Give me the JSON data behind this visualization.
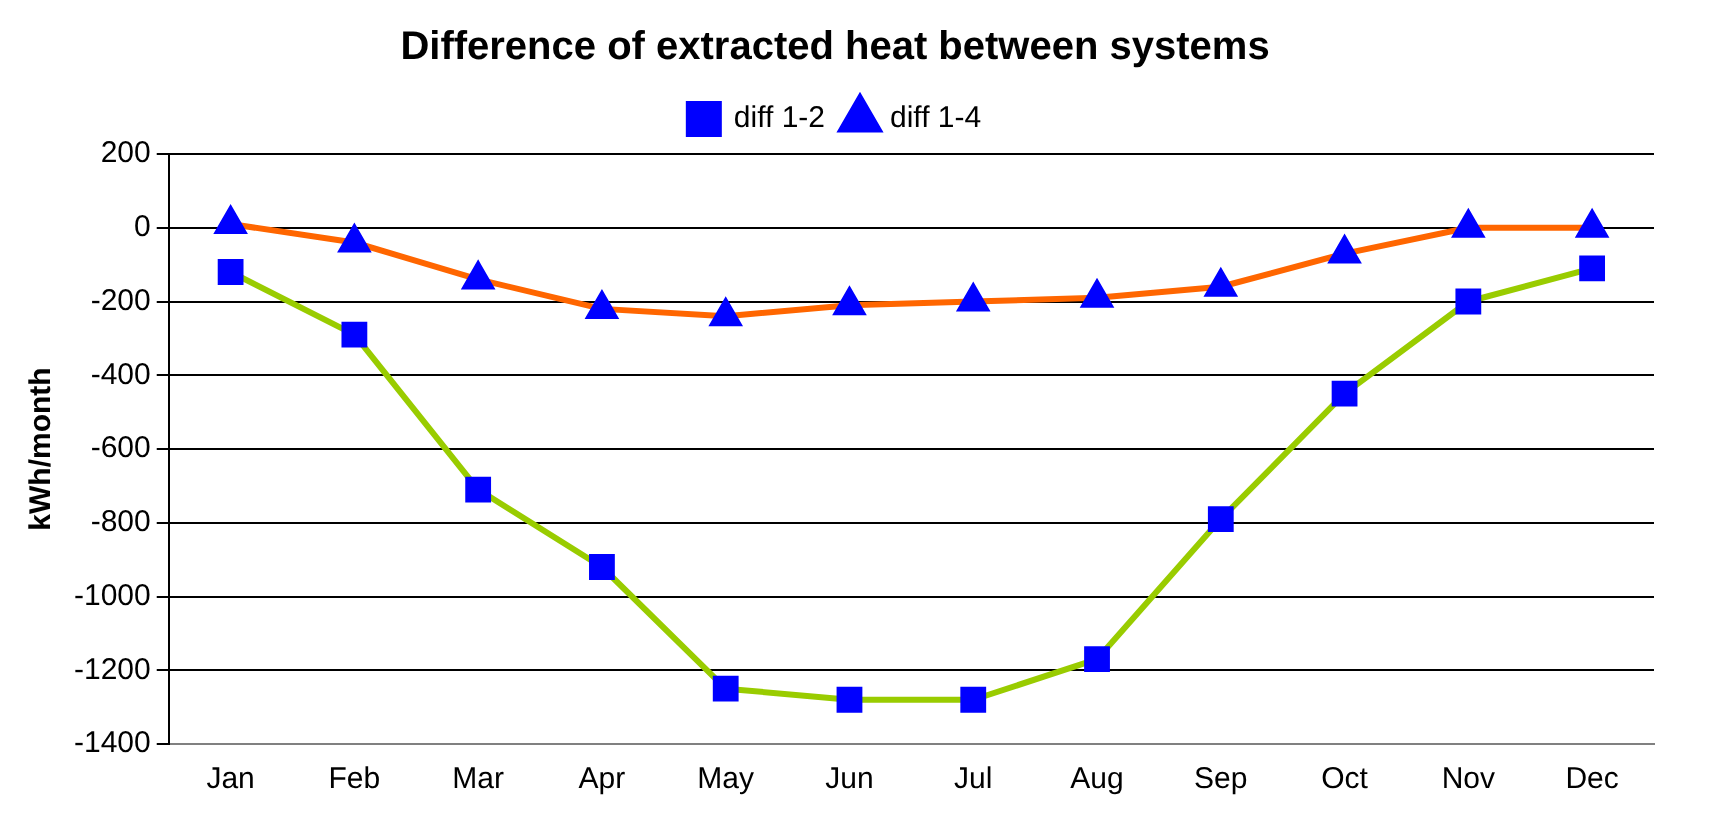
{
  "chart_data": {
    "type": "line",
    "title": "Difference of extracted heat between systems",
    "ylabel": "kWh/month",
    "categories": [
      "Jan",
      "Feb",
      "Mar",
      "Apr",
      "May",
      "Jun",
      "Jul",
      "Aug",
      "Sep",
      "Oct",
      "Nov",
      "Dec"
    ],
    "series": [
      {
        "name": "diff 1-2",
        "color": "#99cc00",
        "marker": "square",
        "values": [
          -120,
          -290,
          -710,
          -920,
          -1250,
          -1280,
          -1280,
          -1170,
          -790,
          -450,
          -200,
          -110
        ]
      },
      {
        "name": "diff 1-4",
        "color": "#ff6600",
        "marker": "triangle",
        "values": [
          10,
          -40,
          -140,
          -220,
          -240,
          -210,
          -200,
          -190,
          -160,
          -70,
          0,
          0
        ]
      }
    ],
    "ylim": [
      -1400,
      200
    ],
    "yticks": [
      -1400,
      -1200,
      -1000,
      -800,
      -600,
      -400,
      -200,
      0,
      200
    ],
    "grid": "y",
    "legend": "top",
    "line_style": "solid"
  }
}
